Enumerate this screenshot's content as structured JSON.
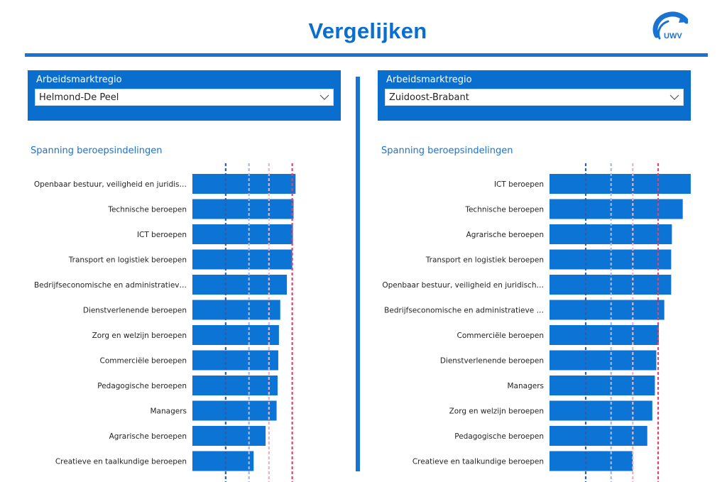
{
  "page": {
    "title": "Vergelijken",
    "logo_text": "UWV"
  },
  "colors": {
    "accent": "#0a6ecf",
    "bar": "#0b74d4",
    "line1": "#2f5da8",
    "line2": "#a8b6e0",
    "line3": "#ecb1c1",
    "line4": "#e0466d"
  },
  "left": {
    "slicer": {
      "label": "Arbeidsmarktregio",
      "value": "Helmond-De Peel"
    },
    "chart_title": "Spanning beroepsindelingen"
  },
  "right": {
    "slicer": {
      "label": "Arbeidsmarktregio",
      "value": "Zuidoost-Brabant"
    },
    "chart_title": "Spanning beroepsindelingen"
  },
  "chart_data": [
    {
      "type": "bar",
      "orientation": "horizontal",
      "title": "Spanning beroepsindelingen",
      "categories": [
        "Openbaar bestuur, veiligheid en juridis…",
        "Technische beroepen",
        "ICT beroepen",
        "Transport en logistiek beroepen",
        "Bedrijfseconomische en administratiev…",
        "Dienstverlenende beroepen",
        "Zorg en welzijn beroepen",
        "Commerciële beroepen",
        "Pedagogische beroepen",
        "Managers",
        "Agrarische beroepen",
        "Creatieve en taalkundige beroepen"
      ],
      "values": [
        3.1,
        3.04,
        3.02,
        3.0,
        2.84,
        2.64,
        2.6,
        2.58,
        2.56,
        2.53,
        2.2,
        1.84
      ],
      "xlim": [
        0,
        3.2
      ],
      "reference_lines": [
        1.0,
        1.7,
        2.3,
        3.0
      ]
    },
    {
      "type": "bar",
      "orientation": "horizontal",
      "title": "Spanning beroepsindelingen",
      "categories": [
        "ICT beroepen",
        "Technische beroepen",
        "Agrarische beroepen",
        "Transport en logistiek beroepen",
        "Openbaar bestuur, veiligheid en juridisch…",
        "Bedrijfseconomische en administratieve …",
        "Commerciële beroepen",
        "Dienstverlenende beroepen",
        "Managers",
        "Zorg en welzijn beroepen",
        "Pedagogische beroepen",
        "Creatieve en taalkundige beroepen"
      ],
      "values": [
        3.9,
        3.68,
        3.38,
        3.36,
        3.36,
        3.17,
        3.02,
        2.95,
        2.91,
        2.84,
        2.7,
        2.3
      ],
      "xlim": [
        0,
        4.0
      ],
      "reference_lines": [
        1.0,
        1.7,
        2.3,
        3.0
      ]
    }
  ]
}
